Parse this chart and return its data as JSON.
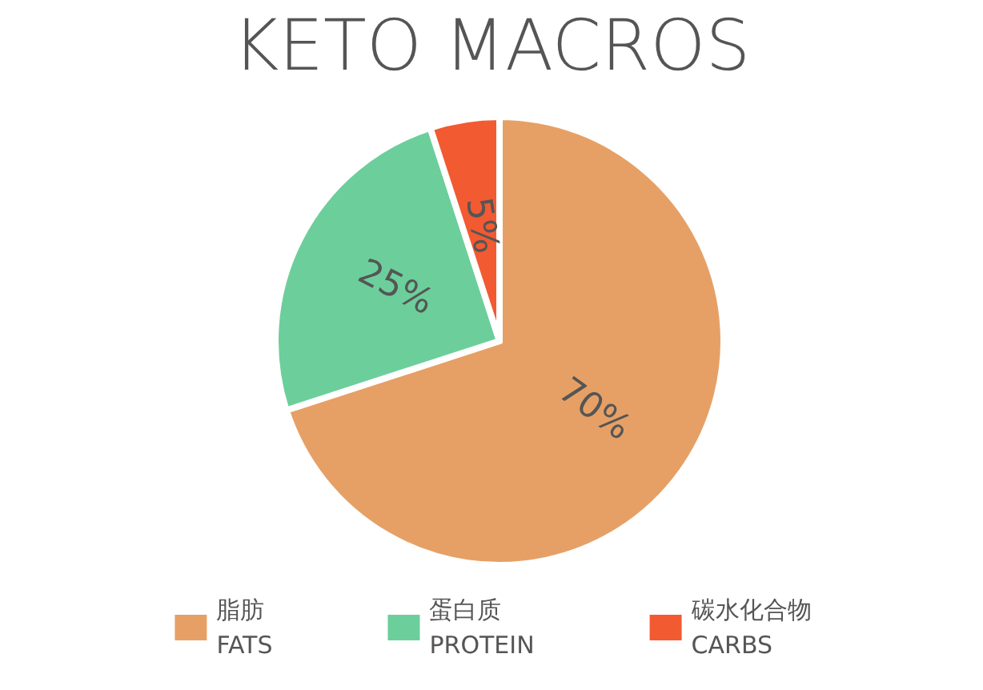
{
  "chart_data": {
    "type": "pie",
    "title": "KETO MACROS",
    "categories": [
      "脂肪\nFATS",
      "蛋白质\nPROTEIN",
      "碳水化合物\nCARBS"
    ],
    "values": [
      70,
      25,
      5
    ],
    "value_labels": [
      "70%",
      "25%",
      "5%"
    ],
    "colors": [
      "#e6a065",
      "#6ccf9b",
      "#f25a32"
    ],
    "legend": "bottom"
  }
}
